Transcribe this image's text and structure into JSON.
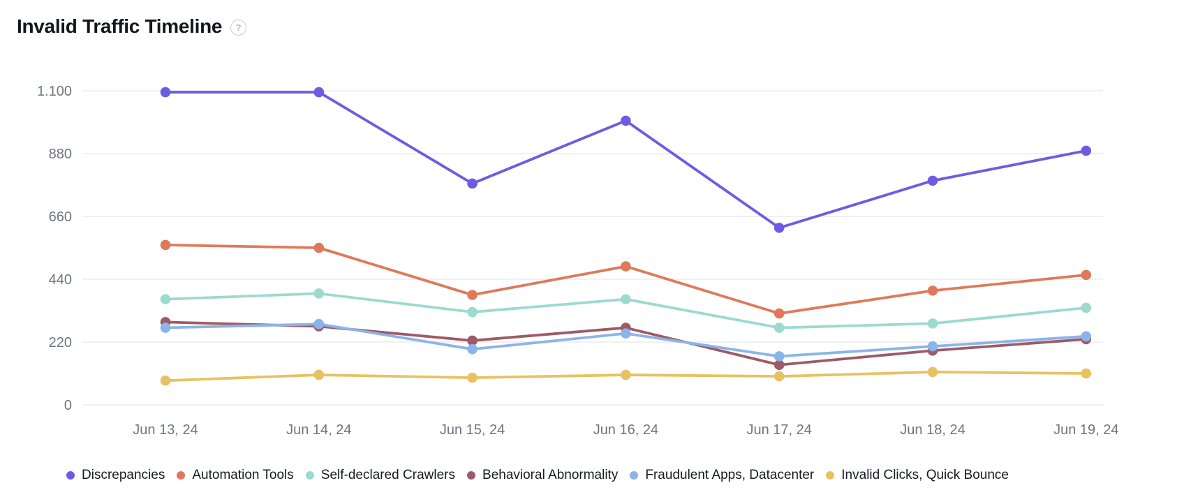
{
  "header": {
    "title": "Invalid Traffic Timeline",
    "help_symbol": "?"
  },
  "colors": {
    "background": "#ffffff",
    "gridline": "#ececf1",
    "tick_text": "#6f7580",
    "legend_text": "#171a21",
    "title_text": "#14161c"
  },
  "chart_data": {
    "type": "line",
    "title": "Invalid Traffic Timeline",
    "x_labels": [
      "Jun 13, 24",
      "Jun 14, 24",
      "Jun 15, 24",
      "Jun 16, 24",
      "Jun 17, 24",
      "Jun 18, 24",
      "Jun 19, 24"
    ],
    "y_tick_labels": [
      "0",
      "220",
      "440",
      "660",
      "880",
      "1.100"
    ],
    "y_tick_values": [
      0,
      220,
      440,
      660,
      880,
      1100
    ],
    "ylim": [
      0,
      1100
    ],
    "grid": "horizontal",
    "legend_position": "bottom",
    "marker": "circle",
    "series": [
      {
        "name": "Discrepancies",
        "color": "#6c5ce4",
        "values": [
          1095,
          1095,
          775,
          995,
          620,
          785,
          890
        ]
      },
      {
        "name": "Automation Tools",
        "color": "#de7a5b",
        "values": [
          560,
          550,
          385,
          485,
          320,
          400,
          455
        ]
      },
      {
        "name": "Self-declared Crawlers",
        "color": "#9cdad0",
        "values": [
          370,
          390,
          325,
          370,
          270,
          285,
          340
        ]
      },
      {
        "name": "Behavioral Abnormality",
        "color": "#9d5b66",
        "values": [
          290,
          275,
          225,
          270,
          140,
          190,
          230
        ]
      },
      {
        "name": "Fraudulent Apps, Datacenter",
        "color": "#8bb4e9",
        "values": [
          270,
          283,
          195,
          250,
          170,
          205,
          240
        ]
      },
      {
        "name": "Invalid Clicks, Quick Bounce",
        "color": "#e7c262",
        "values": [
          85,
          105,
          95,
          105,
          100,
          115,
          110
        ]
      }
    ]
  }
}
